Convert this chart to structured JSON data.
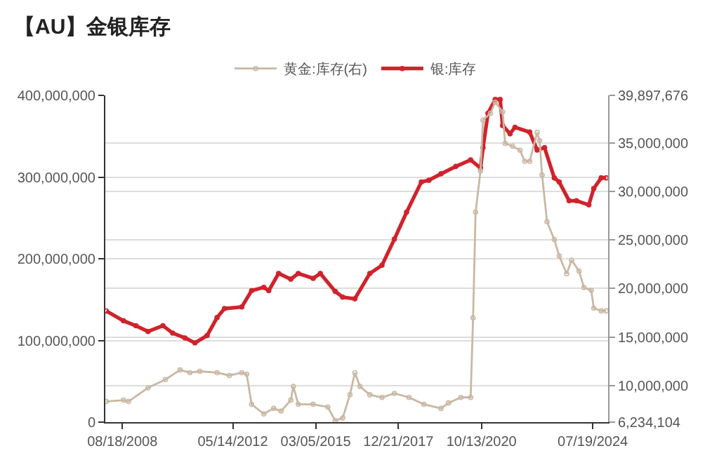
{
  "chart_data": {
    "type": "line",
    "title": "【AU】金银库存",
    "legend": "top",
    "grid": "y",
    "marker": "circle",
    "line_style": "solid",
    "xlim": [
      "2008-01-20",
      "2025-01-25"
    ],
    "xticks": [
      {
        "value": "2008-08-18",
        "label": "08/18/2008"
      },
      {
        "value": "2012-05-14",
        "label": "05/14/2012"
      },
      {
        "value": "2015-03-05",
        "label": "03/05/2015"
      },
      {
        "value": "2017-12-21",
        "label": "12/21/2017"
      },
      {
        "value": "2020-10-13",
        "label": "10/13/2020"
      },
      {
        "value": "2024-07-19",
        "label": "07/19/2024"
      }
    ],
    "ylim": [
      0,
      400000000
    ],
    "yticks": [
      {
        "value": 0,
        "label": "0"
      },
      {
        "value": 100000000,
        "label": "100,000,000"
      },
      {
        "value": 200000000,
        "label": "200,000,000"
      },
      {
        "value": 300000000,
        "label": "300,000,000"
      },
      {
        "value": 400000000,
        "label": "400,000,000"
      }
    ],
    "y2lim": [
      6234104,
      39897676
    ],
    "y2ticks": [
      {
        "value": 6234104,
        "label": "6,234,104"
      },
      {
        "value": 10000000,
        "label": "10,000,000"
      },
      {
        "value": 15000000,
        "label": "15,000,000"
      },
      {
        "value": 20000000,
        "label": "20,000,000"
      },
      {
        "value": 25000000,
        "label": "25,000,000"
      },
      {
        "value": 30000000,
        "label": "30,000,000"
      },
      {
        "value": 35000000,
        "label": "35,000,000"
      },
      {
        "value": 39897676,
        "label": "39,897,676"
      }
    ],
    "series": [
      {
        "name": "黄金:库存(右)",
        "color": "#c8b8a4",
        "axis": "y2",
        "x": [
          "2008-02",
          "2008-09",
          "2008-11",
          "2009-07",
          "2010-02",
          "2010-08",
          "2010-12",
          "2011-04",
          "2011-11",
          "2012-04",
          "2012-09",
          "2012-11",
          "2013-01",
          "2013-06",
          "2013-10",
          "2014-01",
          "2014-05",
          "2014-06",
          "2014-08",
          "2015-02",
          "2015-08",
          "2015-11",
          "2016-02",
          "2016-05",
          "2016-07",
          "2016-09",
          "2017-01",
          "2017-06",
          "2017-11",
          "2018-05",
          "2018-11",
          "2019-06",
          "2019-09",
          "2020-02",
          "2020-06",
          "2020-07",
          "2020-08",
          "2020-10",
          "2020-11",
          "2021-02",
          "2021-04",
          "2021-07",
          "2021-08",
          "2021-11",
          "2022-02",
          "2022-04",
          "2022-06",
          "2022-09",
          "2022-10",
          "2022-11",
          "2023-01",
          "2023-04",
          "2023-06",
          "2023-09",
          "2023-11",
          "2024-02",
          "2024-04",
          "2024-07",
          "2024-08",
          "2024-11",
          "2025-01"
        ],
        "values": [
          8360000,
          8500000,
          8360000,
          9770000,
          10620000,
          11610000,
          11330000,
          11470000,
          11330000,
          11040000,
          11330000,
          11180000,
          8070000,
          7080000,
          7650000,
          7370000,
          8500000,
          9910000,
          8070000,
          8070000,
          7790000,
          6380000,
          6660000,
          9060000,
          11330000,
          9910000,
          9060000,
          8780000,
          9200000,
          8780000,
          8070000,
          7650000,
          8210000,
          8780000,
          8780000,
          16980000,
          27870000,
          32120000,
          37350000,
          38060000,
          39190000,
          38200000,
          34950000,
          34660000,
          34240000,
          33110000,
          33110000,
          36080000,
          35230000,
          31690000,
          26880000,
          25050000,
          23350000,
          21510000,
          22920000,
          21790000,
          20100000,
          19810000,
          17970000,
          17690000,
          17690000
        ]
      },
      {
        "name": "银:库存",
        "color": "#d0232c",
        "x": [
          "2008-02",
          "2008-09",
          "2009-02",
          "2009-07",
          "2010-01",
          "2010-05",
          "2010-10",
          "2011-02",
          "2011-07",
          "2011-11",
          "2012-02",
          "2012-09",
          "2013-01",
          "2013-06",
          "2013-08",
          "2013-12",
          "2014-05",
          "2014-08",
          "2015-02",
          "2015-05",
          "2015-11",
          "2016-02",
          "2016-07",
          "2017-01",
          "2017-06",
          "2017-11",
          "2018-04",
          "2018-10",
          "2019-01",
          "2019-06",
          "2019-12",
          "2020-06",
          "2020-10",
          "2020-11",
          "2021-01",
          "2021-04",
          "2021-06",
          "2021-07",
          "2021-10",
          "2021-12",
          "2022-06",
          "2022-09",
          "2022-12",
          "2023-04",
          "2023-06",
          "2023-10",
          "2024-01",
          "2024-06",
          "2024-08",
          "2024-11",
          "2025-01"
        ],
        "values": [
          136000000,
          124000000,
          118000000,
          111000000,
          118000000,
          109000000,
          103000000,
          97000000,
          106000000,
          128000000,
          139000000,
          141000000,
          161000000,
          165000000,
          161000000,
          182000000,
          175000000,
          182000000,
          176000000,
          182000000,
          160000000,
          153000000,
          151000000,
          182000000,
          192000000,
          224000000,
          257000000,
          294000000,
          296000000,
          304000000,
          313000000,
          321000000,
          311000000,
          336000000,
          378000000,
          395000000,
          395000000,
          363000000,
          353000000,
          361000000,
          355000000,
          333000000,
          336000000,
          299000000,
          294000000,
          271000000,
          271000000,
          266000000,
          286000000,
          299000000,
          299000000
        ]
      }
    ]
  }
}
